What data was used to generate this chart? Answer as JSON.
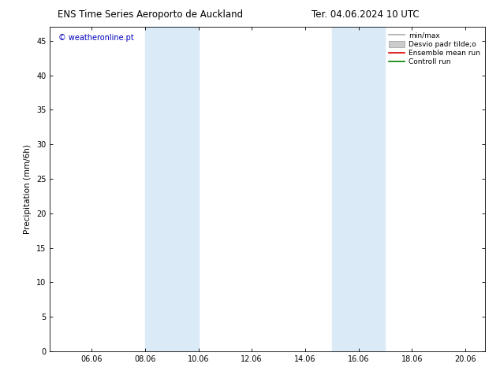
{
  "title_left": "ENS Time Series Aeroporto de Auckland",
  "title_right": "Ter. 04.06.2024 10 UTC",
  "ylabel": "Precipitation (mm/6h)",
  "xlim_start": 4.5,
  "xlim_end": 20.8,
  "ylim_bottom": 0,
  "ylim_top": 47,
  "xticks": [
    6.06,
    8.06,
    10.06,
    12.06,
    14.06,
    16.06,
    18.06,
    20.06
  ],
  "xtick_labels": [
    "06.06",
    "08.06",
    "10.06",
    "12.06",
    "14.06",
    "16.06",
    "18.06",
    "20.06"
  ],
  "yticks": [
    0,
    5,
    10,
    15,
    20,
    25,
    30,
    35,
    40,
    45
  ],
  "shaded_regions": [
    {
      "xmin": 8.06,
      "xmax": 10.06
    },
    {
      "xmin": 15.06,
      "xmax": 17.06
    }
  ],
  "shaded_color": "#daeaf7",
  "watermark_text": "© weatheronline.pt",
  "watermark_color": "#0000bb",
  "legend_items": [
    {
      "label": "min/max",
      "color": "#aaaaaa",
      "linestyle": "-",
      "linewidth": 1.2
    },
    {
      "label": "Desvio padr tilde;o",
      "color": "#cccccc",
      "linestyle": "-",
      "linewidth": 5
    },
    {
      "label": "Ensemble mean run",
      "color": "#dd0000",
      "linestyle": "-",
      "linewidth": 1.2
    },
    {
      "label": "Controll run",
      "color": "#008000",
      "linestyle": "-",
      "linewidth": 1.2
    }
  ],
  "bg_color": "#ffffff",
  "plot_bg_color": "#ffffff",
  "tick_fontsize": 7,
  "label_fontsize": 7.5,
  "title_fontsize": 8.5
}
